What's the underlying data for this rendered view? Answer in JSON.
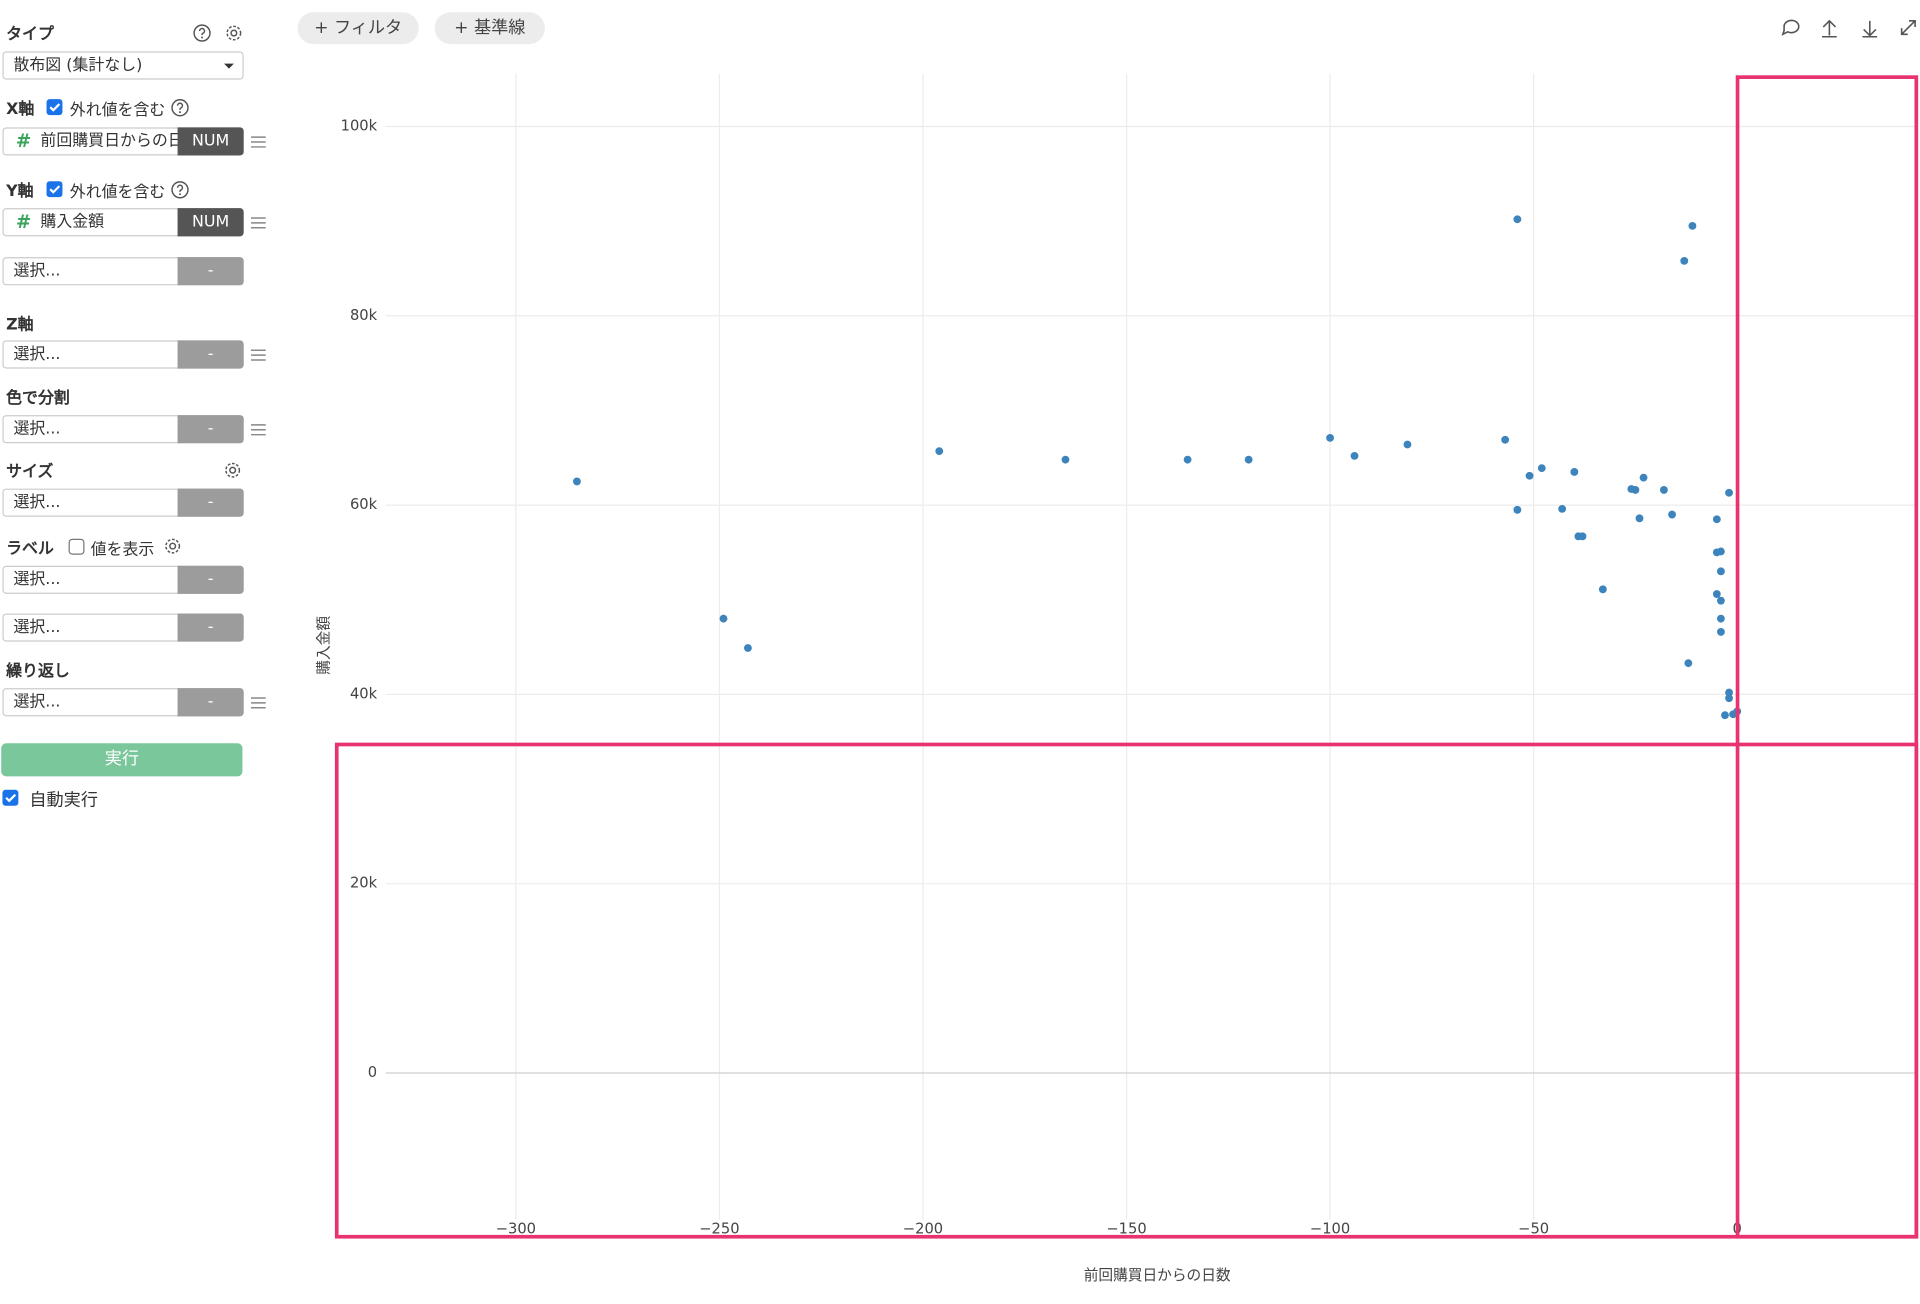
{
  "toolbar": {
    "filter": "+ フィルタ",
    "refline": "+ 基準線"
  },
  "sidebar": {
    "type_label": "タイプ",
    "type_value": "散布図 (集計なし)",
    "x_label": "X軸",
    "x_outliers": "外れ値を含む",
    "x_icon": "#",
    "x_field": "前回購買日からの日数",
    "x_badge": "NUM",
    "y_label": "Y軸",
    "y_outliers": "外れ値を含む",
    "y_icon": "#",
    "y_field": "購入金額",
    "y_badge": "NUM",
    "y2_select": "選択...",
    "y2_badge": "-",
    "z_label": "Z軸",
    "z_select": "選択...",
    "z_badge": "-",
    "color_label": "色で分割",
    "color_select": "選択...",
    "color_badge": "-",
    "size_label": "サイズ",
    "size_select": "選択...",
    "size_badge": "-",
    "label_label": "ラベル",
    "label_show": "値を表示",
    "label_select1": "選択...",
    "label_badge1": "-",
    "label_select2": "選択...",
    "label_badge2": "-",
    "repeat_label": "繰り返し",
    "repeat_select": "選択...",
    "repeat_badge": "-",
    "run": "実行",
    "auto_run": "自動実行"
  },
  "chart_data": {
    "type": "scatter",
    "x_label": "前回購買日からの日数",
    "y_label": "購入金額",
    "color": "#3d84bd",
    "x": [
      -285,
      -249,
      -243,
      -196,
      -165,
      -135,
      -120,
      -100,
      -94,
      -81,
      -57,
      -54,
      -54,
      -51,
      -48,
      -43,
      -40,
      -39,
      -38,
      -33,
      -26,
      -25,
      -24,
      -23,
      -18,
      -16,
      -13,
      -12,
      -11,
      -5,
      -5,
      -4,
      -4,
      -5,
      -4,
      -4,
      -4,
      -2,
      -2,
      -2,
      -3,
      -1,
      0
    ],
    "values": [
      62500,
      48000,
      44900,
      65700,
      64800,
      64800,
      64800,
      67100,
      65200,
      66400,
      66900,
      90200,
      59500,
      63100,
      63900,
      59600,
      63500,
      56700,
      56700,
      51100,
      61700,
      61600,
      58600,
      62900,
      61600,
      59000,
      85800,
      43300,
      89500,
      58500,
      55000,
      55100,
      53000,
      50600,
      49900,
      48000,
      46600,
      61300,
      40200,
      39600,
      37800,
      37900,
      38200
    ],
    "xlim": [
      -344,
      44
    ],
    "ylim": [
      -17300,
      105600
    ],
    "xticks": [
      {
        "value": -300,
        "label": "−300"
      },
      {
        "value": -250,
        "label": "−250"
      },
      {
        "value": -200,
        "label": "−200"
      },
      {
        "value": -150,
        "label": "−150"
      },
      {
        "value": -100,
        "label": "−100"
      },
      {
        "value": -50,
        "label": "−50"
      },
      0
    ],
    "yticks": [
      0,
      {
        "value": 20000,
        "label": "20k"
      },
      {
        "value": 40000,
        "label": "40k"
      },
      {
        "value": 60000,
        "label": "60k"
      },
      {
        "value": 80000,
        "label": "80k"
      },
      {
        "value": 100000,
        "label": "100k"
      }
    ],
    "grid": true
  }
}
